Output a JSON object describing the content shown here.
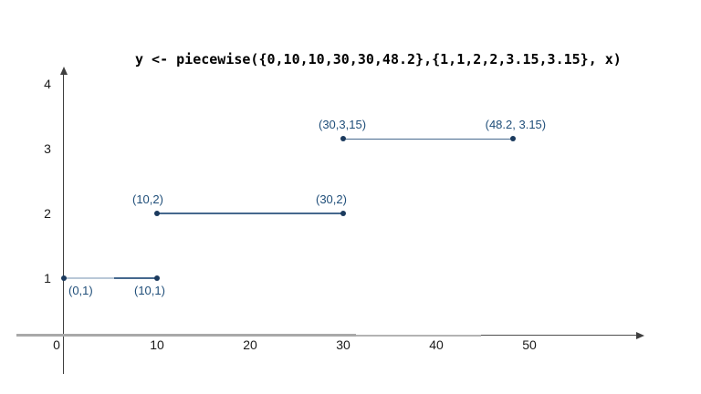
{
  "chart_data": {
    "type": "line",
    "title": "y <- piecewise({0,10,10,30,30,48.2},{1,1,2,2,3.15,3.15}, x)",
    "segments": [
      {
        "two_tone": true,
        "points": [
          {
            "x": 0,
            "y": 1,
            "label": "(0,1)",
            "label_pos": "below"
          },
          {
            "x": 10,
            "y": 1,
            "label": "(10,1)",
            "label_pos": "below"
          }
        ]
      },
      {
        "two_tone": false,
        "points": [
          {
            "x": 10,
            "y": 2,
            "label": "(10,2)",
            "label_pos": "above"
          },
          {
            "x": 30,
            "y": 2,
            "label": "(30,2)",
            "label_pos": "above"
          }
        ]
      },
      {
        "two_tone": false,
        "points": [
          {
            "x": 30,
            "y": 3.15,
            "label": "(30,3,15)",
            "label_pos": "above"
          },
          {
            "x": 48.2,
            "y": 3.15,
            "label": "(48.2, 3.15)",
            "label_pos": "above"
          }
        ]
      }
    ],
    "x_ticks": [
      "10",
      "20",
      "30",
      "40",
      "50"
    ],
    "x_tick_values": [
      10,
      20,
      30,
      40,
      50
    ],
    "y_ticks": [
      "4",
      "3",
      "2",
      "1"
    ],
    "y_tick_values": [
      4,
      3,
      2,
      1
    ],
    "origin_label": "0",
    "xlim": [
      0,
      62
    ],
    "ylim": [
      0,
      4.2
    ],
    "grid": false,
    "legend": false,
    "colors": {
      "point": "#1b3a5e",
      "line": "#45688e",
      "line_light": "#b9c8d7",
      "label": "#1f4e79",
      "axis": "#3f3f3f",
      "axis_gray": "#a9a9a9",
      "tick_text": "#1a1a1a",
      "title_text": "#000000"
    }
  }
}
